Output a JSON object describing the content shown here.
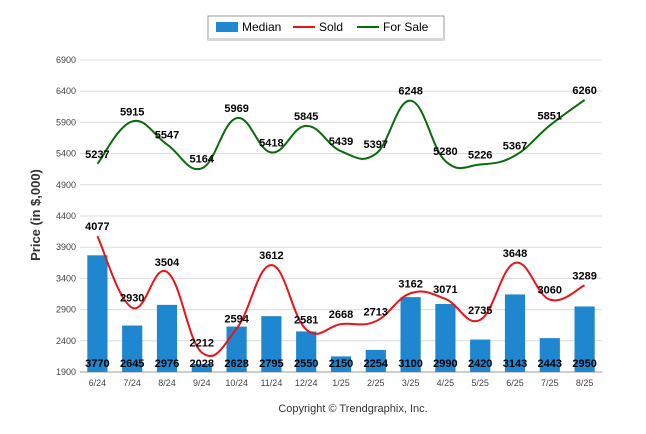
{
  "chart_data": {
    "type": "bar",
    "categories": [
      "6/24",
      "7/24",
      "8/24",
      "9/24",
      "10/24",
      "11/24",
      "12/24",
      "1/25",
      "2/25",
      "3/25",
      "4/25",
      "5/25",
      "6/25",
      "7/25",
      "8/25"
    ],
    "ylabel": "Price (in $,000)",
    "ylim": [
      1900,
      6900
    ],
    "yticks": [
      1900,
      2400,
      2900,
      3400,
      3900,
      4400,
      4900,
      5400,
      5900,
      6400,
      6900
    ],
    "grid": true,
    "legend_position": "top-center",
    "series": [
      {
        "name": "Median",
        "type": "bar",
        "color": "#1f86d0",
        "values": [
          3770,
          2645,
          2976,
          2028,
          2628,
          2795,
          2550,
          2150,
          2254,
          3100,
          2990,
          2420,
          3143,
          2443,
          2950
        ]
      },
      {
        "name": "Sold",
        "type": "line",
        "color": "#e8141b",
        "values": [
          4077,
          2930,
          3504,
          2212,
          2594,
          3612,
          2581,
          2668,
          2713,
          3162,
          3071,
          2735,
          3648,
          3060,
          3289
        ]
      },
      {
        "name": "For Sale",
        "type": "line",
        "color": "#0a6b0a",
        "values": [
          5237,
          5915,
          5547,
          5164,
          5969,
          5418,
          5845,
          5439,
          5397,
          6248,
          5280,
          5226,
          5367,
          5851,
          6260
        ]
      }
    ]
  },
  "credit": "Copyright © Trendgraphix, Inc."
}
